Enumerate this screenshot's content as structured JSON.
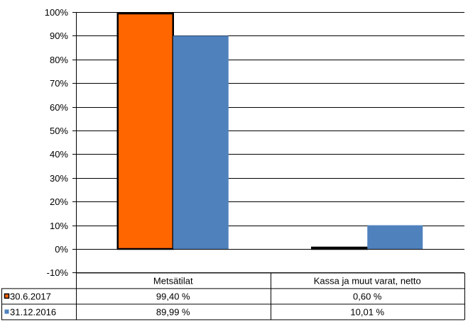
{
  "chart_data": {
    "type": "bar",
    "categories": [
      "Metsätilat",
      "Kassa ja muut varat, netto"
    ],
    "series": [
      {
        "name": "30.6.2017",
        "values": [
          99.4,
          0.6
        ],
        "labels": [
          "99,40 %",
          "0,60 %"
        ],
        "color": "#FF6600"
      },
      {
        "name": "31.12.2016",
        "values": [
          89.99,
          10.01
        ],
        "labels": [
          "89,99 %",
          "10,01 %"
        ],
        "color": "#4F81BD"
      }
    ],
    "yticks": [
      "100%",
      "90%",
      "80%",
      "70%",
      "60%",
      "50%",
      "40%",
      "30%",
      "20%",
      "10%",
      "0%",
      "-10%"
    ],
    "ylim": [
      -10,
      100
    ],
    "grid": true,
    "legend": "data table",
    "title": "",
    "xlabel": "",
    "ylabel": ""
  }
}
